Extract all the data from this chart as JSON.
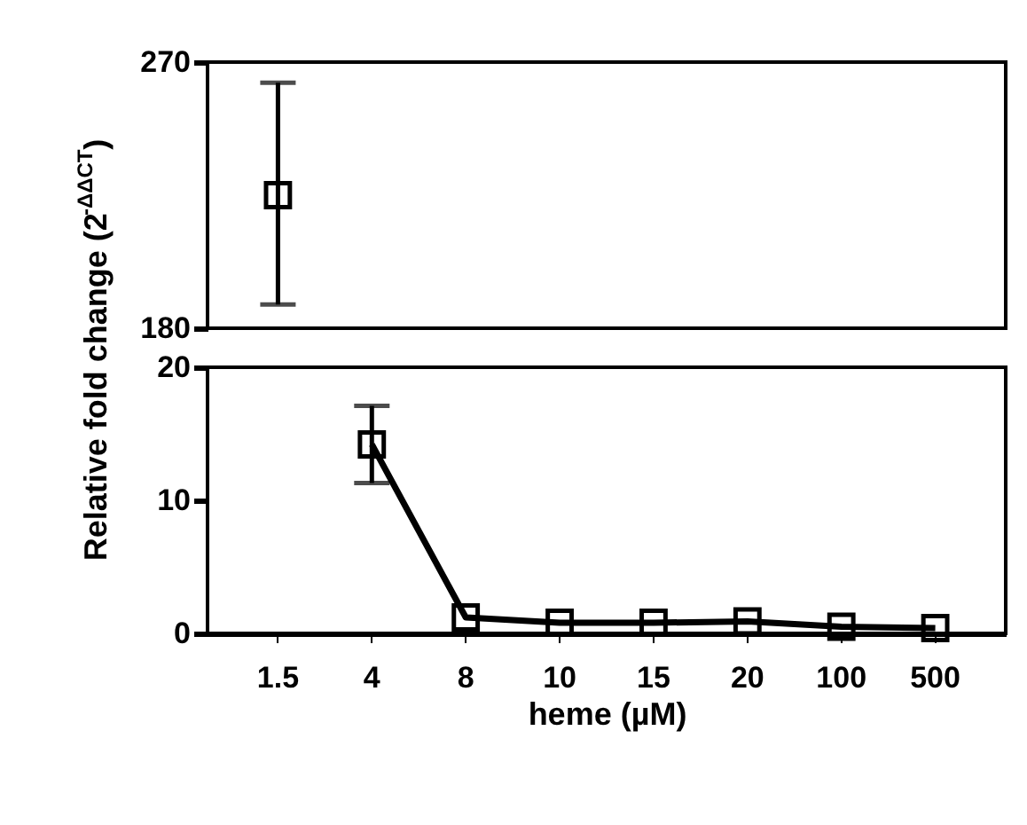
{
  "chart_data": [
    {
      "type": "line",
      "categories": [
        "1.5",
        "4",
        "8",
        "10",
        "15",
        "20",
        "100",
        "500"
      ],
      "series": [
        {
          "color": "#000000",
          "values": [
            225,
            null,
            null,
            null,
            null,
            null,
            null,
            null
          ],
          "errors": [
            [
              188,
              263
            ],
            null,
            null,
            null,
            null,
            null,
            null,
            null
          ]
        }
      ],
      "ylim": [
        180,
        270
      ],
      "yticks": [
        180,
        270
      ],
      "marker": "square",
      "line_style": "solid",
      "tick_labels": "y"
    },
    {
      "type": "line",
      "categories": [
        "1.5",
        "4",
        "8",
        "10",
        "15",
        "20",
        "100",
        "500"
      ],
      "series": [
        {
          "color": "#000000",
          "values": [
            null,
            14.2,
            1.2,
            0.8,
            0.8,
            0.9,
            0.5,
            0.4
          ],
          "errors": [
            null,
            [
              11.3,
              17.1
            ],
            null,
            null,
            null,
            null,
            null,
            null
          ]
        }
      ],
      "ylim": [
        0,
        20
      ],
      "yticks": [
        0,
        10,
        20
      ],
      "xlabel": "heme (µM)",
      "ylabel": "Relative fold change (2$^{-ΔΔCT}$)",
      "marker": "square",
      "line_style": "solid"
    }
  ]
}
